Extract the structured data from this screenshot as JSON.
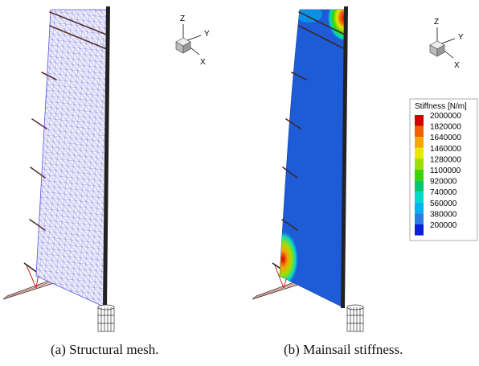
{
  "captions": {
    "a": "(a) Structural mesh.",
    "b": "(b) Mainsail stiffness."
  },
  "triad": {
    "z": "Z",
    "y": "Y",
    "x": "X"
  },
  "legend": {
    "title": "Stiffness [N/m]",
    "entries": [
      {
        "value": "2000000",
        "color": "#d40000"
      },
      {
        "value": "1820000",
        "color": "#f06000"
      },
      {
        "value": "1640000",
        "color": "#f5a800"
      },
      {
        "value": "1460000",
        "color": "#e8e800"
      },
      {
        "value": "1280000",
        "color": "#9be000"
      },
      {
        "value": "1100000",
        "color": "#3cd400"
      },
      {
        "value": "920000",
        "color": "#00c86e"
      },
      {
        "value": "740000",
        "color": "#00d8c8"
      },
      {
        "value": "560000",
        "color": "#00b4f0"
      },
      {
        "value": "380000",
        "color": "#2c7be5"
      },
      {
        "value": "200000",
        "color": "#0a1ee0"
      }
    ]
  },
  "colors": {
    "mesh_fill": "#eeeefa",
    "mesh_line": "#5b55e0",
    "sail_blue": "#1e5bd6",
    "batten": "#3a2a2a",
    "mast": "#222222"
  }
}
